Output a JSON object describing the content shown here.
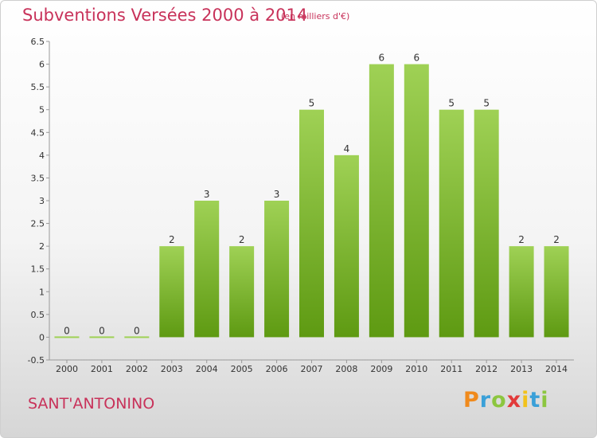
{
  "header": {
    "title": "Subventions Versées 2000 à 2014",
    "unit_note": "(en milliers d'€)"
  },
  "footer": {
    "commune": "SANT'ANTONINO",
    "brand": "Proxiti"
  },
  "colors": {
    "title": "#c8325a",
    "bar_top": "#9fd155",
    "bar_bottom": "#5e9a12",
    "axis": "#999999"
  },
  "chart_data": {
    "type": "bar",
    "categories": [
      "2000",
      "2001",
      "2002",
      "2003",
      "2004",
      "2005",
      "2006",
      "2007",
      "2008",
      "2009",
      "2010",
      "2011",
      "2012",
      "2013",
      "2014"
    ],
    "values": [
      0,
      0,
      0,
      2,
      3,
      2,
      3,
      5,
      4,
      6,
      6,
      5,
      5,
      2,
      2
    ],
    "data_labels": [
      "0",
      "0",
      "0",
      "2",
      "3",
      "2",
      "3",
      "5",
      "4",
      "6",
      "6",
      "5",
      "5",
      "2",
      "2"
    ],
    "y_ticks": [
      "6.5",
      "6",
      "5.5",
      "5",
      "4.5",
      "4",
      "3.5",
      "3",
      "2.5",
      "2",
      "1.5",
      "1",
      "0.5",
      "0",
      "-0.5"
    ],
    "y_tick_values": [
      6.5,
      6,
      5.5,
      5,
      4.5,
      4,
      3.5,
      3,
      2.5,
      2,
      1.5,
      1,
      0.5,
      0,
      -0.5
    ],
    "ylim": [
      -0.5,
      6.5
    ],
    "grid": false,
    "legend": "none"
  }
}
